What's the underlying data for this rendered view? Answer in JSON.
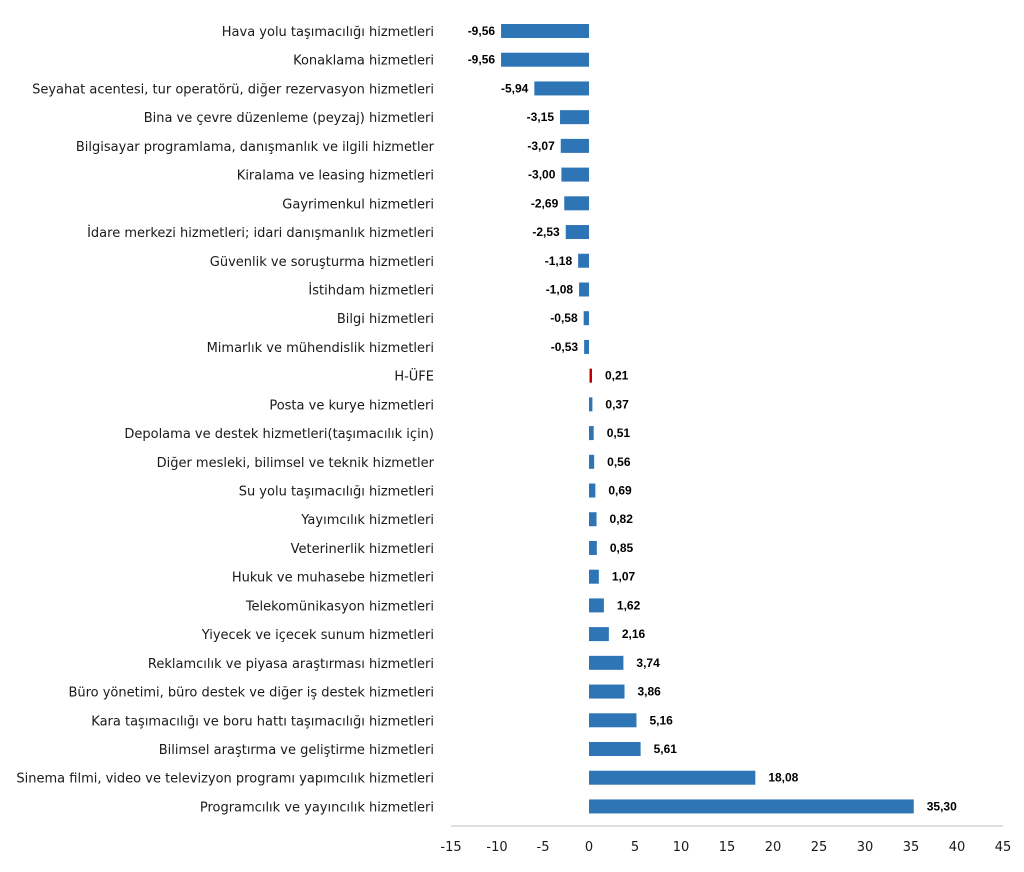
{
  "chart_data": {
    "type": "bar",
    "orientation": "horizontal",
    "categories": [
      "Hava yolu taşımacılığı hizmetleri",
      "Konaklama hizmetleri",
      "Seyahat acentesi, tur operatörü, diğer rezervasyon hizmetleri",
      "Bina ve çevre düzenleme (peyzaj) hizmetleri",
      "Bilgisayar programlama, danışmanlık ve ilgili hizmetler",
      "Kiralama ve leasing hizmetleri",
      "Gayrimenkul hizmetleri",
      "İdare merkezi hizmetleri; idari danışmanlık hizmetleri",
      "Güvenlik ve soruşturma hizmetleri",
      "İstihdam hizmetleri",
      "Bilgi hizmetleri",
      "Mimarlık ve mühendislik hizmetleri",
      "H-ÜFE",
      "Posta ve kurye hizmetleri",
      "Depolama ve destek hizmetleri(taşımacılık için)",
      "Diğer mesleki, bilimsel ve teknik hizmetler",
      "Su yolu taşımacılığı hizmetleri",
      "Yayımcılık hizmetleri",
      "Veterinerlik hizmetleri",
      "Hukuk ve muhasebe hizmetleri",
      "Telekomünikasyon hizmetleri",
      "Yiyecek ve içecek sunum hizmetleri",
      "Reklamcılık ve piyasa araştırması hizmetleri",
      "Büro yönetimi, büro destek ve diğer iş destek hizmetleri",
      "Kara taşımacılığı ve boru hattı taşımacılığı hizmetleri",
      "Bilimsel araştırma ve geliştirme hizmetleri",
      "Sinema filmi, video ve televizyon programı yapımcılık hizmetleri",
      "Programcılık ve yayıncılık hizmetleri"
    ],
    "values": [
      -9.56,
      -9.56,
      -5.94,
      -3.15,
      -3.07,
      -3.0,
      -2.69,
      -2.53,
      -1.18,
      -1.08,
      -0.58,
      -0.53,
      0.21,
      0.37,
      0.51,
      0.56,
      0.69,
      0.82,
      0.85,
      1.07,
      1.62,
      2.16,
      3.74,
      3.86,
      5.16,
      5.61,
      18.08,
      35.3
    ],
    "value_labels": [
      "-9,56",
      "-9,56",
      "-5,94",
      "-3,15",
      "-3,07",
      "-3,00",
      "-2,69",
      "-2,53",
      "-1,18",
      "-1,08",
      "-0,58",
      "-0,53",
      "0,21",
      "0,37",
      "0,51",
      "0,56",
      "0,69",
      "0,82",
      "0,85",
      "1,07",
      "1,62",
      "2,16",
      "3,74",
      "3,86",
      "5,16",
      "5,61",
      "18,08",
      "35,30"
    ],
    "highlight_category": "H-ÜFE",
    "xlim": [
      -15,
      45
    ],
    "xticks": [
      -15,
      -10,
      -5,
      0,
      5,
      10,
      15,
      20,
      25,
      30,
      35,
      40,
      45
    ],
    "title": "",
    "xlabel": "",
    "ylabel": "",
    "grid": false,
    "legend": "none",
    "colors": {
      "bar": "#2e75b6",
      "highlight": "#c00000",
      "axis": "#bfbfbf"
    }
  }
}
